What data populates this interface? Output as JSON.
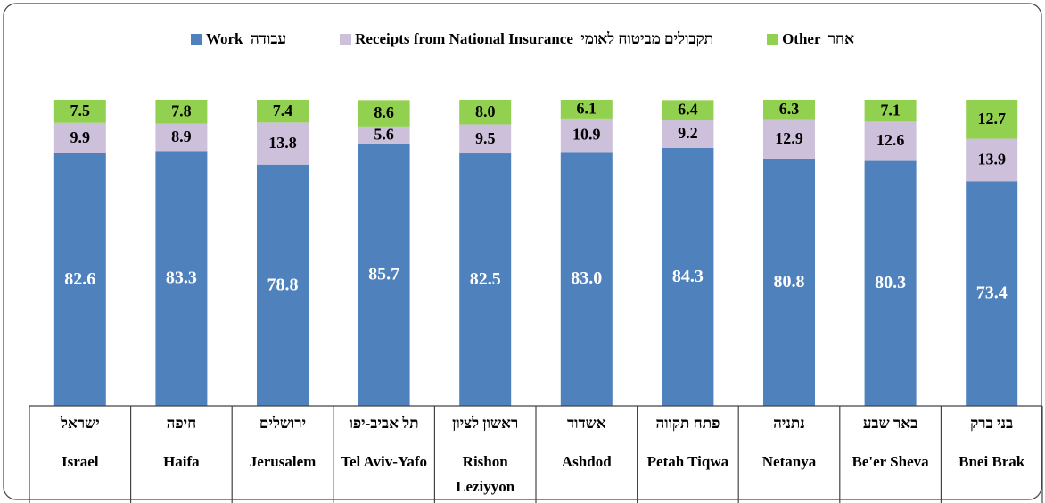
{
  "chart_data": {
    "type": "stacked_bar",
    "categories": [
      "Israel",
      "Haifa",
      "Jerusalem",
      "Tel Aviv-Yafo",
      "Rishon Leziyyon",
      "Ashdod",
      "Petah Tiqwa",
      "Netanya",
      "Be'er Sheva",
      "Bnei Brak"
    ],
    "categories_hebrew": [
      "ישראל",
      "חיפה",
      "ירושלים",
      "תל אביב-יפו",
      "ראשון לציון",
      "אשדוד",
      "פתח תקווה",
      "נתניה",
      "באר שבע",
      "בני ברק"
    ],
    "ylim": [
      0,
      100
    ],
    "series": [
      {
        "name": "Work  עבודה",
        "color": "#4f81bd",
        "values": [
          82.6,
          83.3,
          78.8,
          85.7,
          82.5,
          83.0,
          84.3,
          80.8,
          80.3,
          73.4
        ],
        "value_labels": [
          "82.6",
          "83.3",
          "78.8",
          "85.7",
          "82.5",
          "83.0",
          "84.3",
          "80.8",
          "80.3",
          "73.4"
        ]
      },
      {
        "name": "Receipts from National Insurance  תקבולים מביטוח לאומי",
        "color": "#ccc0da",
        "values": [
          9.9,
          8.9,
          13.8,
          5.6,
          9.5,
          10.9,
          9.2,
          12.9,
          12.6,
          13.9
        ],
        "value_labels": [
          "9.9",
          "8.9",
          "13.8",
          "5.6",
          "9.5",
          "10.9",
          "9.2",
          "12.9",
          "12.6",
          "13.9"
        ]
      },
      {
        "name": "Other  אחר",
        "color": "#92d050",
        "values": [
          7.5,
          7.8,
          7.4,
          8.6,
          8.0,
          6.1,
          6.4,
          6.3,
          7.1,
          12.7
        ],
        "value_labels": [
          "7.5",
          "7.8",
          "7.4",
          "8.6",
          "8.0",
          "6.1",
          "6.4",
          "6.3",
          "7.1",
          "12.7"
        ]
      }
    ]
  }
}
